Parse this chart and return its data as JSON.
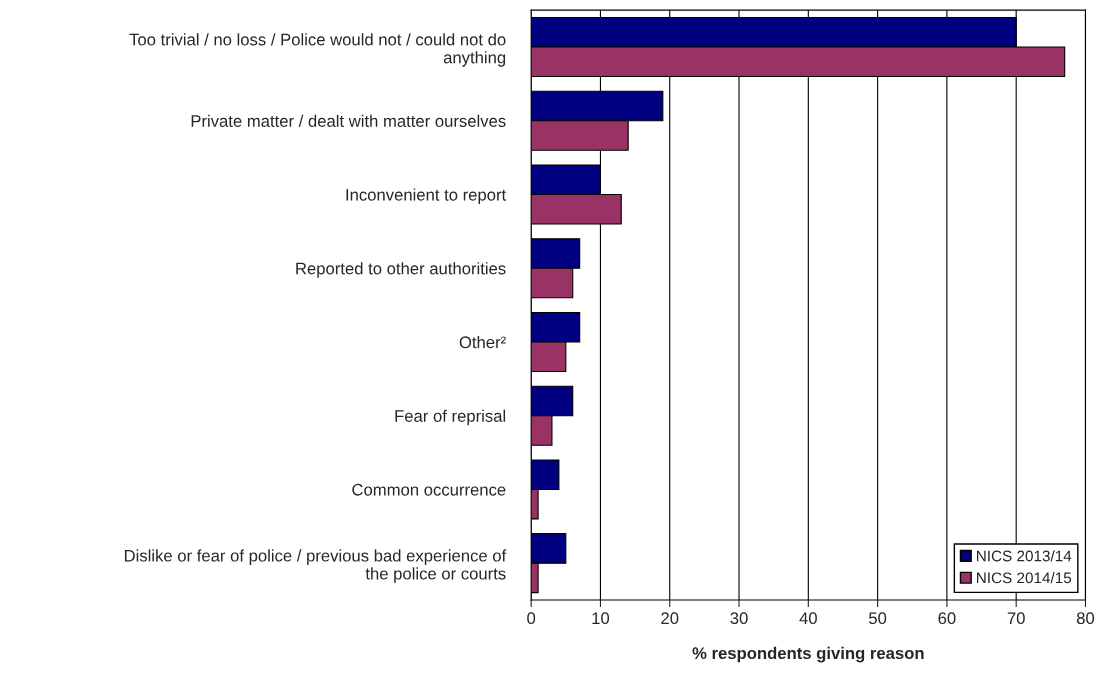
{
  "chart_data": {
    "type": "bar",
    "orientation": "horizontal",
    "xlabel": "% respondents giving reason",
    "categories": [
      "Too trivial / no loss / Police would not / could not do\nanything",
      "Private matter / dealt with matter ourselves",
      "Inconvenient to report",
      "Reported to other authorities",
      "Other²",
      "Fear of reprisal",
      "Common occurrence",
      "Dislike or fear of police / previous bad experience of\nthe police or courts"
    ],
    "series": [
      {
        "name": "NICS 2013/14",
        "color": "#000080",
        "values": [
          70,
          19,
          10,
          7,
          7,
          6,
          4,
          5
        ]
      },
      {
        "name": "NICS 2014/15",
        "color": "#993366",
        "values": [
          77,
          14,
          13,
          6,
          5,
          3,
          1,
          1
        ]
      }
    ],
    "xlim": [
      0,
      80
    ],
    "xticks": [
      0,
      10,
      20,
      30,
      40,
      50,
      60,
      70,
      80
    ],
    "grid": "x",
    "legend": "bottom right"
  }
}
